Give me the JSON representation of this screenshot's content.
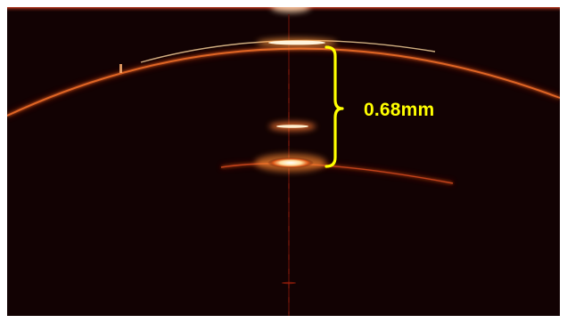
{
  "image": {
    "subject": "oct-cross-section-scan",
    "colors": {
      "background": "#120203",
      "reflection_core": "#ffffff",
      "reflection_glow": "#ffb060",
      "reflection_edge": "#b0200a",
      "annotation": "#ffff00"
    }
  },
  "annotation": {
    "measurement_label": "0.68mm",
    "icon": "bracket-brace-icon"
  }
}
